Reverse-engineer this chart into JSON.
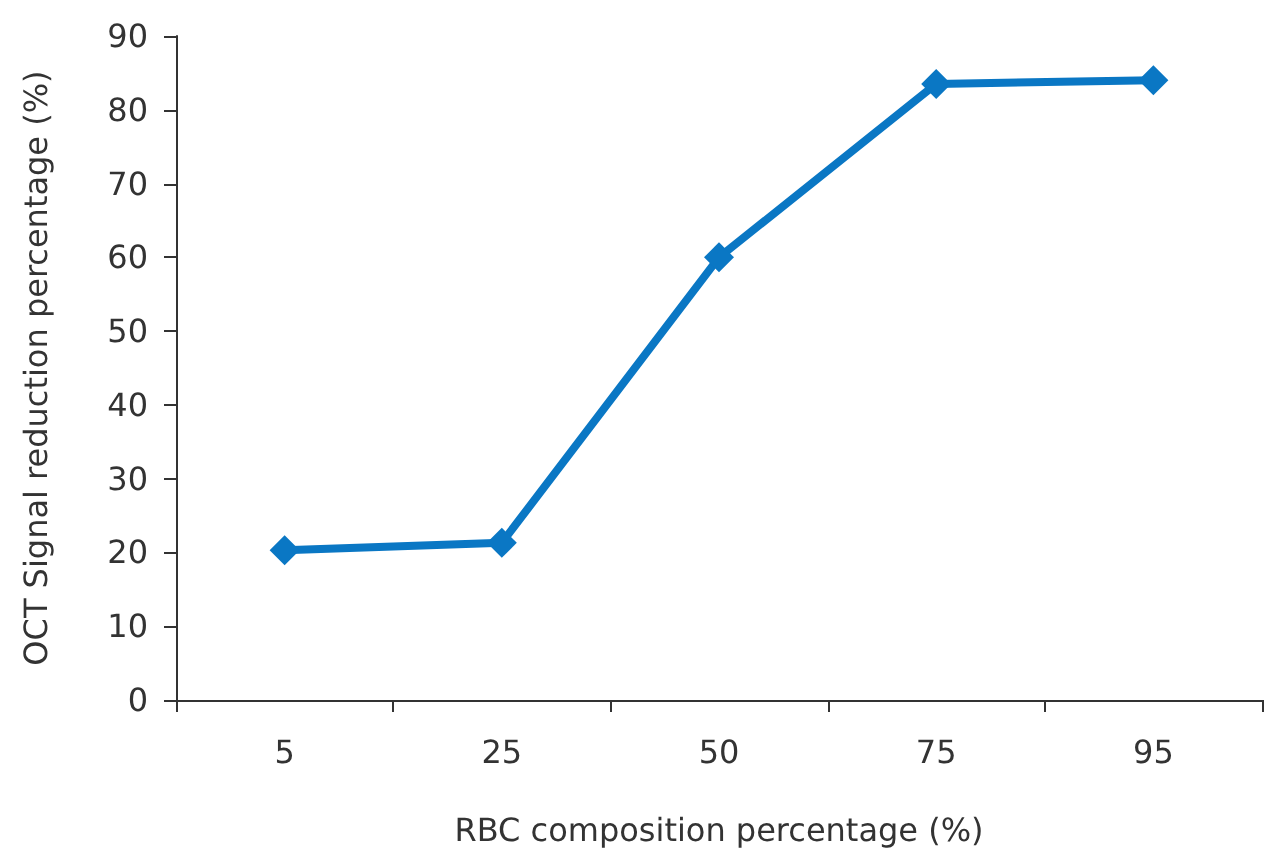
{
  "chart_data": {
    "type": "line",
    "xlabel": "RBC composition percentage (%)",
    "ylabel": "OCT Signal reduction percentage (%)",
    "categories": [
      "5",
      "25",
      "50",
      "75",
      "95"
    ],
    "series": [
      {
        "color": "#0a77c4",
        "values": [
          20.3,
          21.3,
          60,
          83.5,
          84
        ]
      }
    ],
    "ylim": [
      0,
      90
    ],
    "yticks": [
      0,
      10,
      20,
      30,
      40,
      50,
      60,
      70,
      80,
      90
    ],
    "grid": false,
    "marker": "diamond",
    "line_style": "solid"
  }
}
